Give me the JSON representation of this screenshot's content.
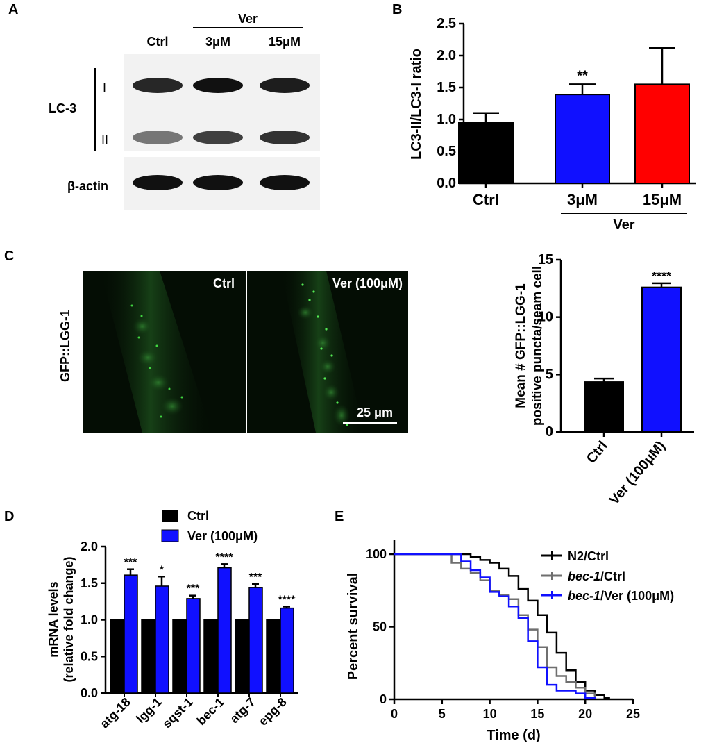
{
  "panels": {
    "A": {
      "letter": "A",
      "group_label": "Ver",
      "lanes": [
        "Ctrl",
        "3μM",
        "15μM"
      ],
      "row_label": "LC-3",
      "band_labels": [
        "I",
        "II"
      ],
      "loading_label": "β-actin",
      "band_intensity": {
        "lc3_I": [
          0.9,
          1.0,
          0.95
        ],
        "lc3_II": [
          0.55,
          0.8,
          0.85
        ],
        "actin": [
          1.0,
          1.0,
          1.0
        ]
      }
    },
    "B": {
      "letter": "B"
    },
    "C": {
      "letter": "C",
      "stain_label": "GFP::LGG-1",
      "image_labels": [
        "Ctrl",
        "Ver (100μM)"
      ],
      "scale_bar": "25 μm"
    },
    "D": {
      "letter": "D",
      "legend": [
        "Ctrl",
        "Ver (100μM)"
      ]
    },
    "E": {
      "letter": "E",
      "legend": [
        "N2/Ctrl",
        "bec-1/Ctrl",
        "bec-1/Ver (100μM)"
      ],
      "legend_italic": [
        "",
        "bec-1",
        "bec-1"
      ],
      "legend_rest": [
        "N2/Ctrl",
        "/Ctrl",
        "/Ver (100μM)"
      ]
    }
  },
  "colors": {
    "ctrl": "#000000",
    "ver3": "#1010ff",
    "ver15": "#ff0000",
    "n2": "#000000",
    "bec_ctrl": "#6f6f6f",
    "bec_ver": "#1010ff"
  },
  "chart_data": [
    {
      "id": "B",
      "type": "bar",
      "categories": [
        "Ctrl",
        "3μM",
        "15μM"
      ],
      "values": [
        0.95,
        1.39,
        1.55
      ],
      "errors": [
        0.15,
        0.16,
        0.57
      ],
      "significance": [
        "",
        "**",
        ""
      ],
      "group_label": "Ver",
      "ylabel": "LC3-II/LC3-I ratio",
      "ylim": [
        0,
        2.5
      ],
      "yticks": [
        "0.0",
        "0.5",
        "1.0",
        "1.5",
        "2.0",
        "2.5"
      ]
    },
    {
      "id": "C",
      "type": "bar",
      "categories": [
        "Ctrl",
        "Ver (100μM)"
      ],
      "values": [
        4.35,
        12.6
      ],
      "errors": [
        0.3,
        0.35
      ],
      "significance": [
        "",
        "****"
      ],
      "ylabel": [
        "Mean # GFP::LGG-1",
        "positive puncta/seam cell"
      ],
      "ylim": [
        0,
        15
      ],
      "yticks": [
        "0",
        "5",
        "10",
        "15"
      ]
    },
    {
      "id": "D",
      "type": "bar",
      "categories": [
        "atg-18",
        "lgg-1",
        "sqst-1",
        "bec-1",
        "atg-7",
        "epg-8"
      ],
      "series": [
        {
          "name": "Ctrl",
          "values": [
            1.0,
            1.0,
            1.0,
            1.0,
            1.0,
            1.0
          ]
        },
        {
          "name": "Ver (100μM)",
          "values": [
            1.61,
            1.46,
            1.29,
            1.71,
            1.44,
            1.16
          ],
          "errors": [
            0.08,
            0.13,
            0.04,
            0.05,
            0.05,
            0.02
          ]
        }
      ],
      "significance": [
        "***",
        "*",
        "***",
        "****",
        "***",
        "****"
      ],
      "ylabel": [
        "mRNA levels",
        "(relative fold change)"
      ],
      "ylim": [
        0,
        2.0
      ],
      "yticks": [
        "0.0",
        "0.5",
        "1.0",
        "1.5",
        "2.0"
      ]
    },
    {
      "id": "E",
      "type": "line",
      "step": true,
      "xlabel": "Time (d)",
      "ylabel": "Percent survival",
      "xlim": [
        0,
        25
      ],
      "ylim": [
        0,
        100
      ],
      "xticks": [
        "0",
        "5",
        "10",
        "15",
        "20",
        "25"
      ],
      "yticks": [
        "0",
        "50",
        "100"
      ],
      "series": [
        {
          "name": "N2/Ctrl",
          "points": [
            [
              0,
              100
            ],
            [
              7,
              100
            ],
            [
              8,
              98
            ],
            [
              9,
              96
            ],
            [
              10,
              94
            ],
            [
              11,
              90
            ],
            [
              12,
              85
            ],
            [
              13,
              76
            ],
            [
              14,
              68
            ],
            [
              15,
              58
            ],
            [
              16,
              46
            ],
            [
              17,
              32
            ],
            [
              18,
              20
            ],
            [
              19,
              12
            ],
            [
              20,
              6
            ],
            [
              21,
              3
            ],
            [
              22,
              1
            ],
            [
              22.5,
              0
            ]
          ]
        },
        {
          "name": "bec-1/Ctrl",
          "points": [
            [
              0,
              100
            ],
            [
              5,
              100
            ],
            [
              6,
              94
            ],
            [
              7,
              90
            ],
            [
              8,
              87
            ],
            [
              9,
              82
            ],
            [
              10,
              75
            ],
            [
              11,
              72
            ],
            [
              12,
              69
            ],
            [
              13,
              58
            ],
            [
              14,
              48
            ],
            [
              15,
              36
            ],
            [
              16,
              22
            ],
            [
              17,
              16
            ],
            [
              18,
              12
            ],
            [
              19,
              8
            ],
            [
              20,
              4
            ],
            [
              21,
              0
            ]
          ]
        },
        {
          "name": "bec-1/Ver (100μM)",
          "points": [
            [
              0,
              100
            ],
            [
              6,
              100
            ],
            [
              7,
              95
            ],
            [
              8,
              89
            ],
            [
              9,
              84
            ],
            [
              10,
              74
            ],
            [
              11,
              71
            ],
            [
              12,
              64
            ],
            [
              13,
              56
            ],
            [
              14,
              40
            ],
            [
              15,
              22
            ],
            [
              16,
              10
            ],
            [
              17,
              6
            ],
            [
              19,
              4
            ],
            [
              20,
              1
            ],
            [
              21,
              0
            ]
          ]
        }
      ]
    }
  ]
}
